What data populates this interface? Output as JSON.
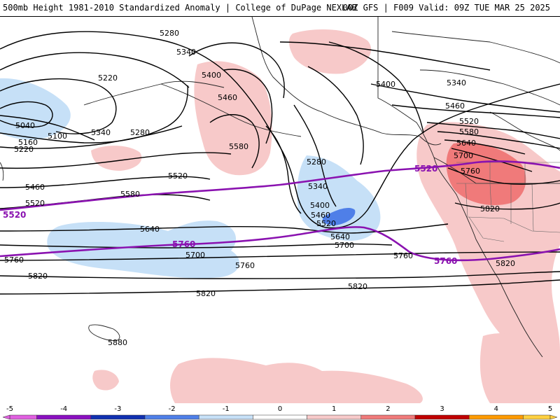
{
  "title": {
    "left": "500mb Height 1981-2010 Standardized Anomaly | College of DuPage NEXLAB",
    "right": "00Z GFS | F009 Valid: 09Z TUE MAR 25 2025"
  },
  "colors": {
    "contour": "#000000",
    "highlight_contour": "#8a12b0",
    "anom_neg1": "#c6e0f7",
    "anom_neg2": "#4f7fe8",
    "anom_pos1": "#f7c9c9",
    "anom_pos2": "#f07a7a",
    "land_outline": "#222222",
    "border": "#666666"
  },
  "contour_labels": [
    {
      "text": "5280"
    },
    {
      "text": "5340"
    },
    {
      "text": "5220"
    },
    {
      "text": "5400"
    },
    {
      "text": "5460"
    },
    {
      "text": "5040"
    },
    {
      "text": "5100"
    },
    {
      "text": "5160"
    },
    {
      "text": "5220"
    },
    {
      "text": "5340"
    },
    {
      "text": "5280"
    },
    {
      "text": "5580"
    },
    {
      "text": "5280"
    },
    {
      "text": "5520"
    },
    {
      "text": "5460"
    },
    {
      "text": "5580"
    },
    {
      "text": "5520"
    },
    {
      "text": "5340"
    },
    {
      "text": "5400"
    },
    {
      "text": "5460"
    },
    {
      "text": "5520"
    },
    {
      "text": "5640"
    },
    {
      "text": "5640"
    },
    {
      "text": "5700"
    },
    {
      "text": "5700"
    },
    {
      "text": "5760"
    },
    {
      "text": "5760"
    },
    {
      "text": "5760"
    },
    {
      "text": "5820"
    },
    {
      "text": "5820"
    },
    {
      "text": "5820"
    },
    {
      "text": "5820"
    },
    {
      "text": "5880"
    },
    {
      "text": "5400"
    },
    {
      "text": "5340"
    },
    {
      "text": "5460"
    },
    {
      "text": "5520"
    },
    {
      "text": "5580"
    },
    {
      "text": "5640"
    },
    {
      "text": "5700"
    },
    {
      "text": "5760"
    },
    {
      "text": "5820"
    }
  ],
  "highlight_labels": [
    {
      "text": "5520"
    },
    {
      "text": "5520"
    },
    {
      "text": "5760"
    },
    {
      "text": "5760"
    }
  ],
  "legend": {
    "ticks": [
      "-5",
      "-4",
      "-3",
      "-2",
      "-1",
      "0",
      "1",
      "2",
      "3",
      "4",
      "5"
    ],
    "colors": [
      "#e060e0",
      "#8a10c0",
      "#1030b0",
      "#4f7fe8",
      "#c6e0f7",
      "#ffffff",
      "#f7c9c9",
      "#f07a7a",
      "#c00000",
      "#ff9a00",
      "#ffd040"
    ]
  }
}
